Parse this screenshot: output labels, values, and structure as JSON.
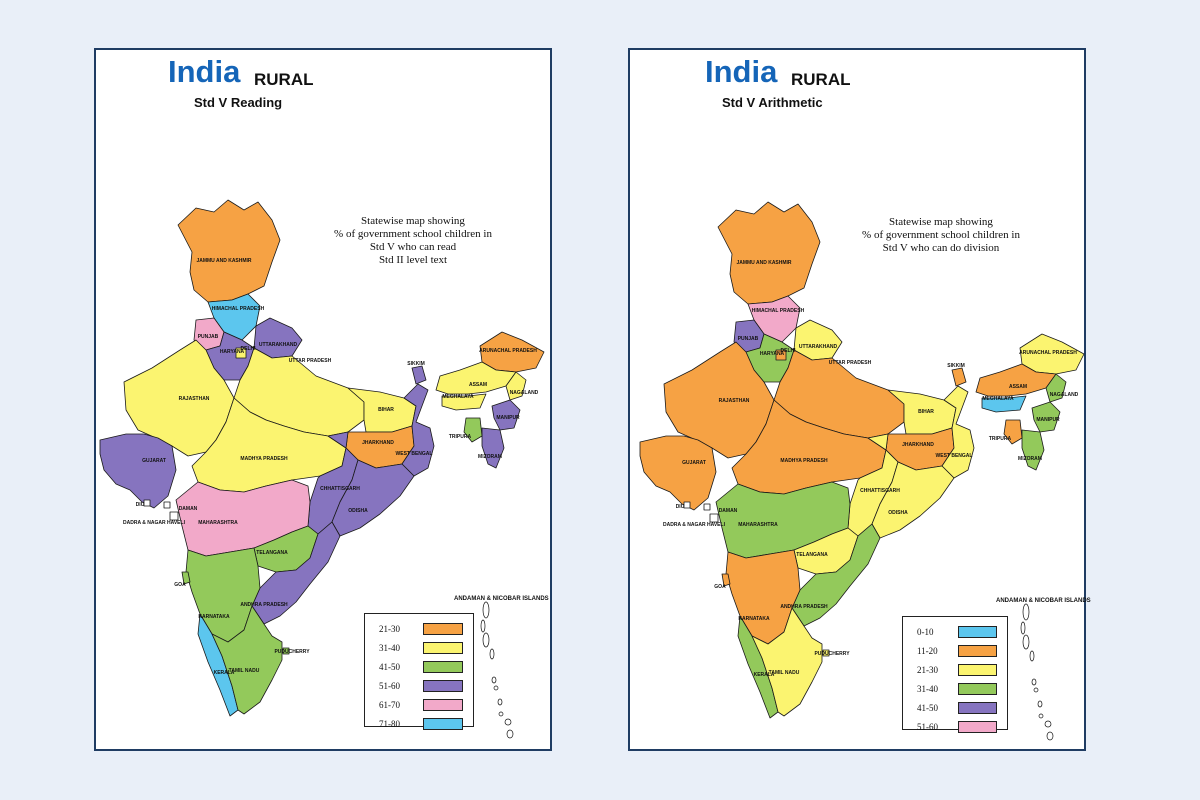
{
  "colors": {
    "orange": "#f6a244",
    "yellow": "#fbf470",
    "green": "#93c95b",
    "purple": "#8674bf",
    "pink": "#f2a9c9",
    "cyan": "#5cc6ee",
    "title_blue": "#1565b8",
    "frame": "#1f3c63"
  },
  "maps": [
    {
      "title": "India",
      "rural": "RURAL",
      "subtitle": "Std V Reading",
      "description": [
        "Statewise map showing",
        "% of government school children in",
        "Std V who can read",
        "Std II level text"
      ],
      "islands_label": "ANDAMAN & NICOBAR ISLANDS",
      "legend": [
        {
          "label": "21-30",
          "color": "#f6a244"
        },
        {
          "label": "31-40",
          "color": "#fbf470"
        },
        {
          "label": "41-50",
          "color": "#93c95b"
        },
        {
          "label": "51-60",
          "color": "#8674bf"
        },
        {
          "label": "61-70",
          "color": "#f2a9c9"
        },
        {
          "label": "71-80",
          "color": "#5cc6ee"
        }
      ],
      "states": [
        {
          "name": "JAMMU AND KASHMIR",
          "color": "#f6a244"
        },
        {
          "name": "HIMACHAL PRADESH",
          "color": "#5cc6ee"
        },
        {
          "name": "PUNJAB",
          "color": "#f2a9c9"
        },
        {
          "name": "UTTARAKHAND",
          "color": "#8674bf"
        },
        {
          "name": "HARYANA",
          "color": "#8674bf"
        },
        {
          "name": "DELHI",
          "color": "#fbf470"
        },
        {
          "name": "RAJASTHAN",
          "color": "#fbf470"
        },
        {
          "name": "UTTAR PRADESH",
          "color": "#fbf470"
        },
        {
          "name": "BIHAR",
          "color": "#fbf470"
        },
        {
          "name": "JHARKHAND",
          "color": "#f6a244"
        },
        {
          "name": "WEST BENGAL",
          "color": "#8674bf"
        },
        {
          "name": "GUJARAT",
          "color": "#8674bf"
        },
        {
          "name": "MADHYA PRADESH",
          "color": "#fbf470"
        },
        {
          "name": "CHHATTISGARH",
          "color": "#8674bf"
        },
        {
          "name": "ODISHA",
          "color": "#8674bf"
        },
        {
          "name": "MAHARASHTRA",
          "color": "#f2a9c9"
        },
        {
          "name": "TELANGANA",
          "color": "#93c95b"
        },
        {
          "name": "ANDHRA PRADESH",
          "color": "#8674bf"
        },
        {
          "name": "KARNATAKA",
          "color": "#93c95b"
        },
        {
          "name": "GOA",
          "color": "#93c95b"
        },
        {
          "name": "KERALA",
          "color": "#5cc6ee"
        },
        {
          "name": "TAMIL NADU",
          "color": "#93c95b"
        },
        {
          "name": "PUDUCHERRY",
          "color": "#93c95b"
        },
        {
          "name": "SIKKIM",
          "color": "#8674bf"
        },
        {
          "name": "ARUNACHAL PRADESH",
          "color": "#f6a244"
        },
        {
          "name": "ASSAM",
          "color": "#fbf470"
        },
        {
          "name": "MEGHALAYA",
          "color": "#fbf470"
        },
        {
          "name": "NAGALAND",
          "color": "#fbf470"
        },
        {
          "name": "MANIPUR",
          "color": "#8674bf"
        },
        {
          "name": "MIZORAM",
          "color": "#8674bf"
        },
        {
          "name": "TRIPURA",
          "color": "#93c95b"
        },
        {
          "name": "DAMAN",
          "color": "#ffffff"
        },
        {
          "name": "DIU",
          "color": "#ffffff"
        },
        {
          "name": "DADRA & NAGAR HAVELI",
          "color": "#ffffff"
        }
      ]
    },
    {
      "title": "India",
      "rural": "RURAL",
      "subtitle": "Std V Arithmetic",
      "description": [
        "Statewise map showing",
        "% of government school children in",
        "Std V who can do division"
      ],
      "islands_label": "ANDAMAN & NICOBAR ISLANDS",
      "legend": [
        {
          "label": "0-10",
          "color": "#5cc6ee"
        },
        {
          "label": "11-20",
          "color": "#f6a244"
        },
        {
          "label": "21-30",
          "color": "#fbf470"
        },
        {
          "label": "31-40",
          "color": "#93c95b"
        },
        {
          "label": "41-50",
          "color": "#8674bf"
        },
        {
          "label": "51-60",
          "color": "#f2a9c9"
        }
      ],
      "states": [
        {
          "name": "JAMMU AND KASHMIR",
          "color": "#f6a244"
        },
        {
          "name": "HIMACHAL PRADESH",
          "color": "#f2a9c9"
        },
        {
          "name": "PUNJAB",
          "color": "#8674bf"
        },
        {
          "name": "UTTARAKHAND",
          "color": "#fbf470"
        },
        {
          "name": "HARYANA",
          "color": "#93c95b"
        },
        {
          "name": "DELHI",
          "color": "#f6a244"
        },
        {
          "name": "RAJASTHAN",
          "color": "#f6a244"
        },
        {
          "name": "UTTAR PRADESH",
          "color": "#f6a244"
        },
        {
          "name": "BIHAR",
          "color": "#fbf470"
        },
        {
          "name": "JHARKHAND",
          "color": "#f6a244"
        },
        {
          "name": "WEST BENGAL",
          "color": "#fbf470"
        },
        {
          "name": "GUJARAT",
          "color": "#f6a244"
        },
        {
          "name": "MADHYA PRADESH",
          "color": "#f6a244"
        },
        {
          "name": "CHHATTISGARH",
          "color": "#fbf470"
        },
        {
          "name": "ODISHA",
          "color": "#fbf470"
        },
        {
          "name": "MAHARASHTRA",
          "color": "#93c95b"
        },
        {
          "name": "TELANGANA",
          "color": "#fbf470"
        },
        {
          "name": "ANDHRA PRADESH",
          "color": "#93c95b"
        },
        {
          "name": "KARNATAKA",
          "color": "#f6a244"
        },
        {
          "name": "GOA",
          "color": "#f6a244"
        },
        {
          "name": "KERALA",
          "color": "#93c95b"
        },
        {
          "name": "TAMIL NADU",
          "color": "#fbf470"
        },
        {
          "name": "PUDUCHERRY",
          "color": "#fbf470"
        },
        {
          "name": "SIKKIM",
          "color": "#f6a244"
        },
        {
          "name": "ARUNACHAL PRADESH",
          "color": "#fbf470"
        },
        {
          "name": "ASSAM",
          "color": "#f6a244"
        },
        {
          "name": "MEGHALAYA",
          "color": "#5cc6ee"
        },
        {
          "name": "NAGALAND",
          "color": "#93c95b"
        },
        {
          "name": "MANIPUR",
          "color": "#93c95b"
        },
        {
          "name": "MIZORAM",
          "color": "#93c95b"
        },
        {
          "name": "TRIPURA",
          "color": "#f6a244"
        },
        {
          "name": "DAMAN",
          "color": "#ffffff"
        },
        {
          "name": "DIU",
          "color": "#ffffff"
        },
        {
          "name": "DADRA & NAGAR HAVELI",
          "color": "#ffffff"
        }
      ]
    }
  ]
}
